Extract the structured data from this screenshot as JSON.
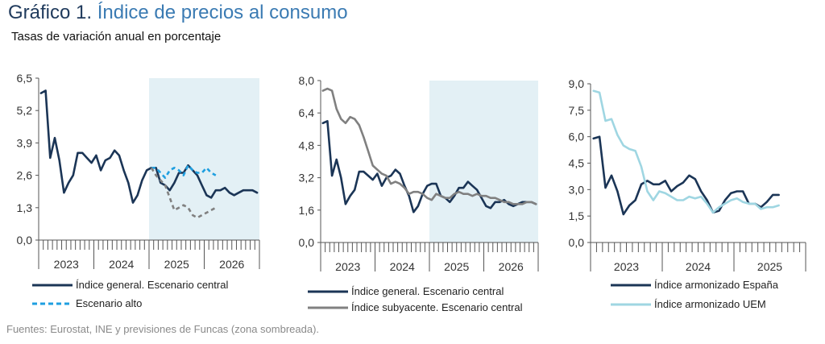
{
  "title": {
    "lead": "Gráfico 1.",
    "rest": "Índice de precios al consumo"
  },
  "subtitle": "Tasas de variación anual en porcentaje",
  "source": "Fuentes: Eurostat, INE y previsiones de Funcas (zona sombreada).",
  "colors": {
    "navy": "#1b3556",
    "lightblue": "#1f9fe0",
    "gray": "#808080",
    "cyan": "#9fd6e2",
    "shade": "#e3f0f5",
    "axis": "#555555",
    "text": "#333333"
  },
  "chart_data": [
    {
      "type": "line",
      "yticks": [
        "0,0",
        "1,3",
        "2,6",
        "3,9",
        "5,2",
        "6,5"
      ],
      "ylim": [
        0,
        6.5
      ],
      "years": [
        "2023",
        "2024",
        "2025",
        "2026"
      ],
      "forecast_start": "2025-01",
      "legend": [
        "Índice general. Escenario central",
        "Escenario alto"
      ],
      "series": [
        {
          "name": "Índice general. Escenario central",
          "color": "navy",
          "style": "solid",
          "values": [
            5.9,
            6.0,
            3.3,
            4.1,
            3.2,
            1.9,
            2.3,
            2.6,
            3.5,
            3.5,
            3.3,
            3.1,
            3.4,
            2.8,
            3.2,
            3.3,
            3.6,
            3.4,
            2.8,
            2.3,
            1.5,
            1.8,
            2.4,
            2.8,
            2.9,
            2.9,
            2.3,
            2.2,
            2.0,
            2.3,
            2.7,
            2.7,
            3.0,
            2.8,
            2.6,
            2.2,
            1.8,
            1.7,
            2.0,
            2.0,
            2.1,
            1.9,
            1.8,
            1.9,
            2.0,
            2.0,
            2.0,
            1.9
          ]
        },
        {
          "name": "Escenario alto",
          "color": "lightblue",
          "style": "dashed",
          "start_index": 24,
          "values": [
            2.9,
            2.9,
            2.7,
            2.5,
            2.8,
            2.9,
            2.8,
            2.6,
            3.0,
            2.8,
            2.7,
            2.7,
            2.9,
            2.7,
            2.6
          ]
        },
        {
          "name": "",
          "color": "gray",
          "style": "dashed",
          "start_index": 24,
          "values": [
            2.9,
            2.6,
            2.4,
            2.2,
            1.7,
            1.2,
            1.3,
            1.4,
            1.3,
            1.0,
            0.9,
            1.0,
            1.1,
            1.2,
            1.3
          ]
        }
      ]
    },
    {
      "type": "line",
      "yticks": [
        "0,0",
        "1,6",
        "3,2",
        "4,8",
        "6,4",
        "8,0"
      ],
      "ylim": [
        0,
        8.0
      ],
      "years": [
        "2023",
        "2024",
        "2025",
        "2026"
      ],
      "forecast_start": "2025-01",
      "legend": [
        "Índice general. Escenario central",
        "Índice subyacente. Escenario central"
      ],
      "series": [
        {
          "name": "Índice general. Escenario central",
          "color": "navy",
          "style": "solid",
          "values": [
            5.9,
            6.0,
            3.3,
            4.1,
            3.2,
            1.9,
            2.3,
            2.6,
            3.5,
            3.5,
            3.3,
            3.1,
            3.4,
            2.8,
            3.2,
            3.3,
            3.6,
            3.4,
            2.8,
            2.3,
            1.5,
            1.8,
            2.4,
            2.8,
            2.9,
            2.9,
            2.3,
            2.2,
            2.0,
            2.3,
            2.7,
            2.7,
            3.0,
            2.8,
            2.6,
            2.2,
            1.8,
            1.7,
            2.0,
            2.0,
            2.1,
            1.9,
            1.8,
            1.9,
            2.0,
            2.0,
            2.0,
            1.9
          ]
        },
        {
          "name": "Índice subyacente. Escenario central",
          "color": "gray",
          "style": "solid",
          "values": [
            7.5,
            7.6,
            7.5,
            6.6,
            6.1,
            5.9,
            6.2,
            6.1,
            5.8,
            5.2,
            4.5,
            3.8,
            3.6,
            3.4,
            3.3,
            2.9,
            3.0,
            2.9,
            2.7,
            2.4,
            2.5,
            2.5,
            2.4,
            2.2,
            2.1,
            2.4,
            2.3,
            2.2,
            2.2,
            2.4,
            2.5,
            2.4,
            2.4,
            2.3,
            2.4,
            2.3,
            2.3,
            2.2,
            2.2,
            2.1,
            2.0,
            2.0,
            1.9,
            1.9,
            1.9,
            2.0,
            2.0,
            1.9
          ]
        }
      ]
    },
    {
      "type": "line",
      "yticks": [
        "0,0",
        "1,5",
        "3,0",
        "4,5",
        "6,0",
        "7,5",
        "9,0"
      ],
      "ylim": [
        0,
        9.0
      ],
      "years": [
        "2023",
        "2024",
        "2025"
      ],
      "legend": [
        "Índice armonizado España",
        "Índice armonizado UEM"
      ],
      "series": [
        {
          "name": "Índice armonizado España",
          "color": "navy",
          "style": "solid",
          "values": [
            5.9,
            6.0,
            3.1,
            3.8,
            2.9,
            1.6,
            2.1,
            2.4,
            3.3,
            3.5,
            3.3,
            3.3,
            3.5,
            2.9,
            3.2,
            3.4,
            3.8,
            3.6,
            2.9,
            2.4,
            1.7,
            1.8,
            2.4,
            2.8,
            2.9,
            2.9,
            2.2,
            2.2,
            2.0,
            2.3,
            2.7,
            2.7
          ]
        },
        {
          "name": "Índice armonizado UEM",
          "color": "cyan",
          "style": "solid",
          "values": [
            8.6,
            8.5,
            6.9,
            7.0,
            6.1,
            5.5,
            5.3,
            5.2,
            4.3,
            2.9,
            2.4,
            2.9,
            2.8,
            2.6,
            2.4,
            2.4,
            2.6,
            2.5,
            2.6,
            2.2,
            1.7,
            2.0,
            2.2,
            2.4,
            2.5,
            2.3,
            2.2,
            2.2,
            1.9,
            2.0,
            2.0,
            2.1
          ]
        }
      ]
    }
  ]
}
